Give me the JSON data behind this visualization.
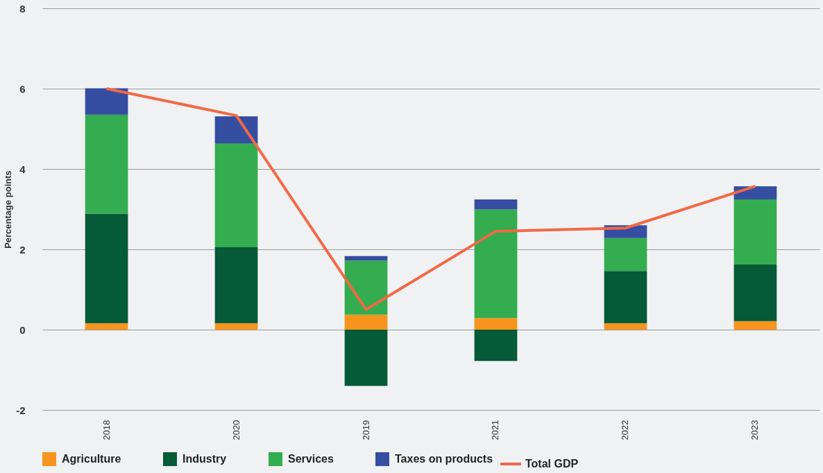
{
  "chart_data": {
    "type": "bar",
    "stacked": true,
    "ylabel": "Percentage points",
    "categories": [
      "2018",
      "2020",
      "2019",
      "2021",
      "2022",
      "2023"
    ],
    "series": [
      {
        "name": "Agriculture",
        "color": "#f7941d",
        "values": [
          0.16,
          0.16,
          0.37,
          0.29,
          0.16,
          0.21
        ]
      },
      {
        "name": "Industry",
        "color": "#055a37",
        "values": [
          2.73,
          1.89,
          -1.4,
          -0.78,
          1.3,
          1.41
        ]
      },
      {
        "name": "Services",
        "color": "#33ad4f",
        "values": [
          2.46,
          2.59,
          1.35,
          2.7,
          0.82,
          1.62
        ]
      },
      {
        "name": "Taxes on products",
        "color": "#354ea1",
        "values": [
          0.66,
          0.67,
          0.11,
          0.25,
          0.32,
          0.33
        ]
      },
      {
        "name": "Total GDP",
        "type": "line",
        "color": "#f26845",
        "values": [
          6.0,
          5.33,
          0.5,
          2.45,
          2.53,
          3.57
        ]
      }
    ],
    "ylim": [
      -2,
      8
    ],
    "yticks": [
      -2,
      0,
      2,
      4,
      6,
      8
    ],
    "grid": "y",
    "legend": "bottom",
    "marker": "none",
    "line_style": "solid"
  }
}
